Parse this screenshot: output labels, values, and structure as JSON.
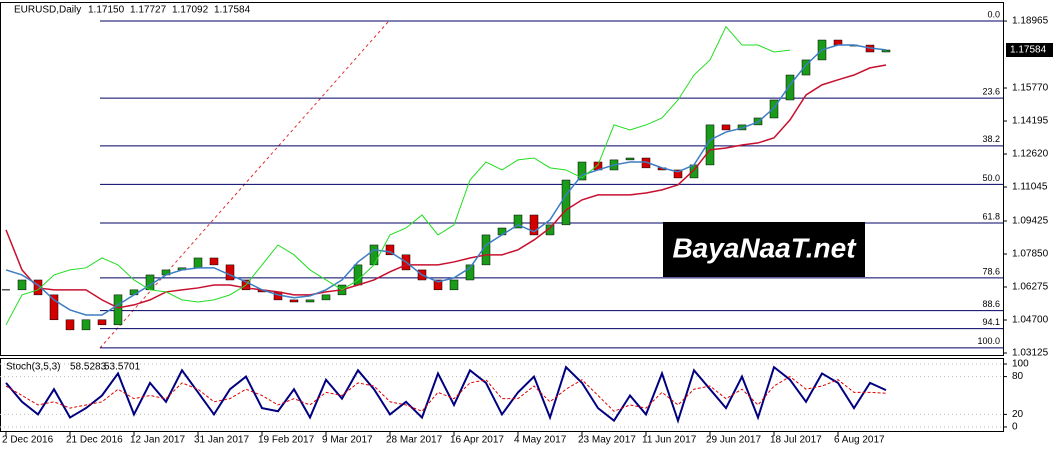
{
  "chart_data": [
    {
      "type": "candlestick",
      "title": "EURUSD,Daily",
      "header": [
        "1.17150",
        "1.17727",
        "1.17092"
      ],
      "categories": [
        "2 Dec 2016",
        null,
        null,
        null,
        "21 Dec 2016",
        null,
        null,
        null,
        "12 Jan 2017",
        null,
        null,
        null,
        "31 Jan 2017",
        null,
        null,
        null,
        "19 Feb 2017",
        null,
        null,
        null,
        "9 Mar 2017",
        null,
        null,
        null,
        "28 Mar 2017",
        null,
        null,
        null,
        "16 Apr 2017",
        null,
        null,
        null,
        "4 May 2017",
        null,
        null,
        null,
        "23 May 2017",
        null,
        null,
        null,
        "11 Jun 2017",
        null,
        null,
        null,
        "29 Jun 2017",
        null,
        null,
        null,
        "18 Jul 2017",
        null,
        null,
        null,
        "6 Aug 2017",
        null,
        null,
        null
      ],
      "series": [
        {
          "color": "#1a9b1a",
          "down_color": "#d40000",
          "values": [
            1.0614,
            1.0661,
            1.059,
            1.0471,
            1.0423,
            1.0471,
            1.0447,
            1.059,
            1.0614,
            1.0685,
            1.0709,
            1.0719,
            1.0766,
            1.0733,
            1.0661,
            1.0614,
            1.0604,
            1.0566,
            1.0556,
            1.0566,
            1.059,
            1.0637,
            1.0733,
            1.0828,
            1.0781,
            1.0709,
            1.0661,
            1.0614,
            1.0661,
            1.0733,
            1.0876,
            1.0909,
            1.0971,
            1.0876,
            1.0924,
            1.1138,
            1.1224,
            1.1186,
            1.1234,
            1.1243,
            1.1196,
            1.1186,
            1.1148,
            1.121,
            1.1401,
            1.1377,
            1.1401,
            1.1434,
            1.152,
            1.1639,
            1.1711,
            1.1806,
            1.1782,
            1.1782,
            1.1749,
            1.17584
          ]
        },
        {
          "color": "#c8102e",
          "values": [
            1.09,
            1.0709,
            1.0623,
            1.0614,
            1.0614,
            1.0614,
            1.0566,
            1.0528,
            1.0542,
            1.0566,
            1.0604,
            1.0614,
            1.0623,
            1.0637,
            1.0637,
            1.0623,
            1.0614,
            1.0604,
            1.059,
            1.059,
            1.0604,
            1.0614,
            1.0637,
            1.0661,
            1.07,
            1.0733,
            1.0733,
            1.0733,
            1.0747,
            1.0766,
            1.0781,
            1.0781,
            1.0805,
            1.0852,
            1.0909,
            1.0995,
            1.1043,
            1.1067,
            1.1067,
            1.1067,
            1.1076,
            1.1091,
            1.1115,
            1.1186,
            1.1282,
            1.1291,
            1.1305,
            1.1315,
            1.1339,
            1.1425,
            1.1544,
            1.1592,
            1.1616,
            1.1639,
            1.1673,
            1.1687
          ]
        },
        {
          "color": "#3c7dc4",
          "values": [
            1.0709,
            1.0685,
            1.0637,
            1.0566,
            1.0518,
            1.0494,
            1.0494,
            1.0542,
            1.059,
            1.0637,
            1.0685,
            1.0709,
            1.0719,
            1.0719,
            1.0685,
            1.0652,
            1.0614,
            1.059,
            1.0576,
            1.0585,
            1.0614,
            1.0661,
            1.0747,
            1.0805,
            1.0795,
            1.0747,
            1.0685,
            1.0652,
            1.0671,
            1.0719,
            1.0828,
            1.0876,
            1.0924,
            1.0891,
            1.0948,
            1.1067,
            1.1162,
            1.1186,
            1.121,
            1.1224,
            1.1224,
            1.1196,
            1.1177,
            1.121,
            1.1329,
            1.1367,
            1.1386,
            1.1415,
            1.1482,
            1.1592,
            1.1687,
            1.1759,
            1.1782,
            1.1782,
            1.1768,
            1.1759
          ]
        },
        {
          "color": "#22dd22",
          "values": [
            1.0447,
            1.059,
            1.0614,
            1.0685,
            1.0709,
            1.0719,
            1.0766,
            1.0733,
            1.0661,
            1.0614,
            1.0604,
            1.0566,
            1.0556,
            1.0566,
            1.059,
            1.0637,
            1.0733,
            1.0828,
            1.0781,
            1.0709,
            1.0661,
            1.0614,
            1.0661,
            1.0733,
            1.0876,
            1.0909,
            1.0971,
            1.0876,
            1.0924,
            1.1138,
            1.1224,
            1.1186,
            1.1234,
            1.1243,
            1.1196,
            1.1186,
            1.1148,
            1.121,
            1.1401,
            1.1377,
            1.1401,
            1.1434,
            1.152,
            1.1639,
            1.1711,
            1.187,
            1.1782,
            1.1782,
            1.1749,
            1.1758,
            null,
            null,
            null,
            null,
            null,
            null
          ]
        }
      ],
      "fib_levels": [
        {
          "label": "0.0",
          "value": 1.1897
        },
        {
          "label": "23.6",
          "value": 1.1529
        },
        {
          "label": "38.2",
          "value": 1.1301
        },
        {
          "label": "50.0",
          "value": 1.1117
        },
        {
          "label": "61.8",
          "value": 1.0933
        },
        {
          "label": "78.6",
          "value": 1.0671
        },
        {
          "label": "88.6",
          "value": 1.0515
        },
        {
          "label": "94.1",
          "value": 1.0429
        },
        {
          "label": "100.0",
          "value": 1.0337
        }
      ],
      "fib_color": "#000066",
      "ylim": [
        1.0303,
        1.1997
      ],
      "yticks": [
        1.18965,
        {
          "value": 1.1577,
          "label": "1.15770"
        },
        1.14195,
        {
          "value": 1.1262,
          "label": "1.12620"
        },
        1.11045,
        1.09425,
        {
          "value": 1.0785,
          "label": "1.07850"
        },
        1.06275,
        {
          "value": 1.047,
          "label": "1.04700"
        },
        1.03125
      ],
      "watermark": "BayaNaaT.net"
    },
    {
      "type": "line",
      "title": "Stoch(3,5,3)",
      "series": [
        {
          "color": "#000080",
          "values": [
            70,
            40,
            20,
            60,
            15,
            30,
            50,
            85,
            20,
            70,
            40,
            90,
            55,
            20,
            60,
            80,
            30,
            25,
            60,
            15,
            75,
            45,
            90,
            60,
            20,
            40,
            15,
            85,
            35,
            90,
            70,
            20,
            55,
            80,
            15,
            95,
            70,
            30,
            10,
            50,
            20,
            85,
            10,
            90,
            60,
            30,
            80,
            15,
            95,
            75,
            40,
            85,
            70,
            30,
            70,
            58.5283
          ]
        },
        {
          "color": "#e00000",
          "dashed": true,
          "values": [
            65,
            50,
            35,
            40,
            30,
            35,
            40,
            60,
            45,
            50,
            45,
            70,
            60,
            40,
            45,
            60,
            50,
            35,
            45,
            35,
            55,
            50,
            70,
            65,
            40,
            35,
            25,
            55,
            45,
            70,
            75,
            45,
            45,
            65,
            40,
            60,
            75,
            50,
            25,
            35,
            30,
            55,
            35,
            60,
            65,
            45,
            60,
            35,
            65,
            80,
            60,
            65,
            75,
            55,
            55,
            53.5701
          ]
        }
      ],
      "ylim": [
        0,
        100
      ],
      "yticks": [
        100,
        80,
        20,
        0
      ]
    }
  ]
}
